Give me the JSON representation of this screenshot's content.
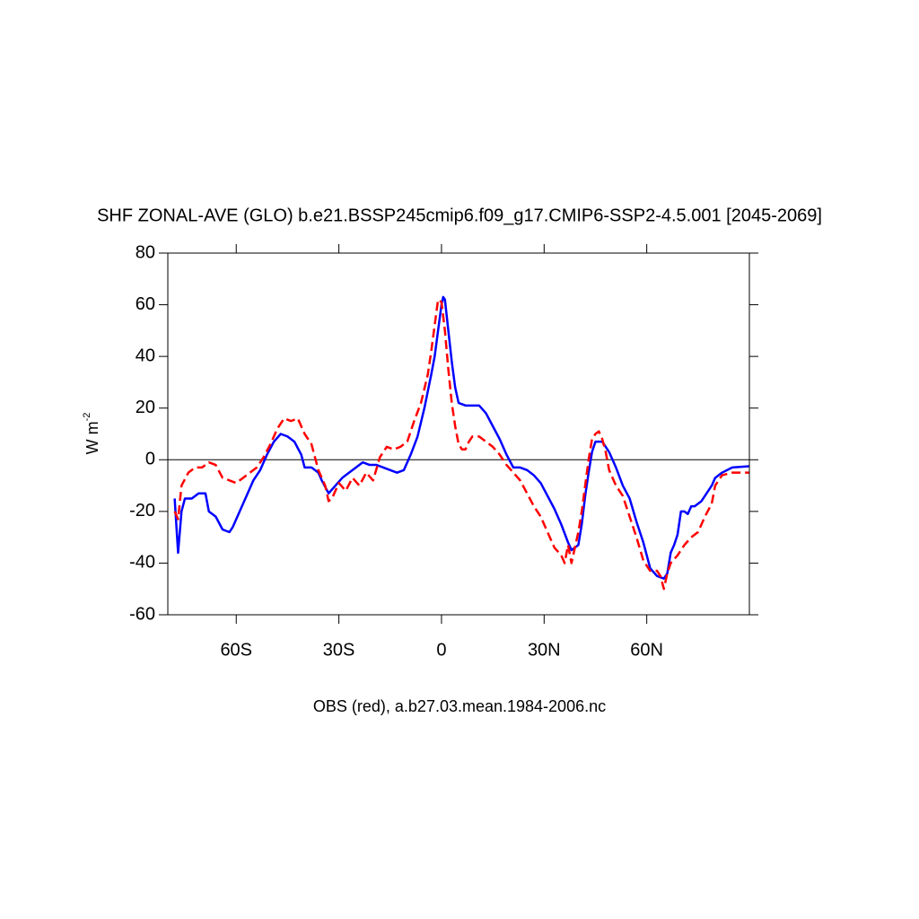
{
  "chart_data": {
    "type": "line",
    "title": "SHF ZONAL-AVE (GLO) b.e21.BSSP245cmip6.f09_g17.CMIP6-SSP2-4.5.001 [2045-2069]",
    "xlabel": "OBS (red), a.b27.03.mean.1984-2006.nc",
    "ylabel": "W m",
    "ylabel_superscript": "-2",
    "xlim": [
      -80,
      90
    ],
    "ylim": [
      -60,
      80
    ],
    "xticks": [
      {
        "value": -60,
        "label": "60S"
      },
      {
        "value": -30,
        "label": "30S"
      },
      0,
      {
        "value": 30,
        "label": "30N"
      },
      {
        "value": 60,
        "label": "60N"
      }
    ],
    "yticks": [
      -60,
      -40,
      -20,
      0,
      20,
      40,
      60,
      80
    ],
    "zero_line": true,
    "series": [
      {
        "color": "#0000ff",
        "dash": false,
        "x": [
          -78,
          -77,
          -76,
          -75,
          -73,
          -71,
          -69,
          -68,
          -66,
          -64,
          -62,
          -61,
          -59,
          -57,
          -55,
          -53,
          -51,
          -49,
          -47,
          -45,
          -43,
          -41,
          -40,
          -38,
          -36,
          -35,
          -33,
          -31,
          -29,
          -27,
          -25,
          -23,
          -21,
          -19,
          -17,
          -15,
          -13,
          -11,
          -9,
          -7,
          -5,
          -3,
          -2,
          -1,
          0,
          0.5,
          1,
          2,
          3,
          4,
          5,
          7,
          9,
          11,
          13,
          15,
          17,
          19,
          21,
          23,
          25,
          27,
          29,
          31,
          33,
          35,
          37,
          38,
          40,
          41,
          42,
          43,
          44,
          45,
          47,
          49,
          51,
          53,
          55,
          57,
          59,
          61,
          63,
          65,
          66,
          67,
          68,
          69,
          70,
          71,
          72,
          73,
          74,
          75,
          76,
          77,
          79,
          80,
          82,
          85,
          90
        ],
        "values": [
          -15,
          -36,
          -20,
          -15,
          -15,
          -13,
          -13,
          -20,
          -22,
          -27,
          -28,
          -26,
          -20,
          -14,
          -8,
          -4,
          2,
          7,
          10,
          9,
          7,
          2,
          -3,
          -3,
          -5,
          -8,
          -13,
          -10,
          -7,
          -5,
          -3,
          -1,
          -2,
          -2,
          -3,
          -4,
          -5,
          -4,
          2,
          9,
          20,
          33,
          40,
          50,
          60,
          63,
          62,
          50,
          38,
          28,
          22,
          21,
          21,
          21,
          18,
          13,
          8,
          2,
          -3,
          -3,
          -4,
          -6,
          -9,
          -14,
          -19,
          -25,
          -32,
          -35,
          -33,
          -25,
          -14,
          -5,
          3,
          7,
          7,
          3,
          -3,
          -10,
          -15,
          -24,
          -32,
          -42,
          -45,
          -46,
          -44,
          -36,
          -33,
          -29,
          -20,
          -20,
          -21,
          -18,
          -18,
          -17,
          -16,
          -14,
          -10,
          -7,
          -5,
          -3,
          -2.5
        ]
      },
      {
        "color": "#ff0000",
        "dash": true,
        "x": [
          -78,
          -77,
          -76,
          -74,
          -72,
          -70,
          -68,
          -66,
          -64,
          -62,
          -60,
          -58,
          -56,
          -54,
          -52,
          -50,
          -48,
          -46,
          -44,
          -42,
          -40,
          -38,
          -36,
          -34,
          -33,
          -32,
          -30,
          -28,
          -26,
          -24,
          -22,
          -20,
          -18,
          -16,
          -14,
          -12,
          -10,
          -8,
          -6,
          -4,
          -3,
          -2,
          -1,
          0,
          1,
          2,
          3,
          4,
          5,
          6,
          7,
          8,
          9,
          11,
          13,
          15,
          17,
          19,
          21,
          23,
          25,
          27,
          29,
          31,
          33,
          35,
          36,
          37,
          38,
          39,
          40,
          41,
          42,
          43,
          44,
          45,
          46,
          47,
          48,
          49,
          51,
          53,
          55,
          57,
          59,
          61,
          63,
          64,
          65,
          66,
          67,
          69,
          71,
          73,
          75,
          77,
          79,
          80,
          82,
          85,
          90
        ],
        "values": [
          -20,
          -23,
          -10,
          -5,
          -3,
          -3,
          -1,
          -2,
          -7,
          -8,
          -9,
          -7,
          -5,
          -3,
          1,
          6,
          12,
          16,
          15,
          16,
          10,
          6,
          -4,
          -10,
          -16,
          -15,
          -9,
          -12,
          -7,
          -10,
          -5,
          -8,
          1,
          5,
          4,
          5,
          7,
          15,
          22,
          33,
          42,
          52,
          62,
          61,
          50,
          35,
          22,
          13,
          6,
          4,
          4,
          7,
          9,
          9,
          7,
          5,
          2,
          -2,
          -5,
          -8,
          -13,
          -18,
          -22,
          -28,
          -34,
          -37,
          -40,
          -33,
          -40,
          -34,
          -28,
          -20,
          -10,
          0,
          8,
          10,
          11,
          8,
          3,
          -4,
          -10,
          -14,
          -22,
          -30,
          -39,
          -43,
          -43,
          -45,
          -50,
          -44,
          -40,
          -37,
          -33,
          -30,
          -28,
          -22,
          -17,
          -10,
          -6,
          -5,
          -5
        ]
      }
    ]
  }
}
